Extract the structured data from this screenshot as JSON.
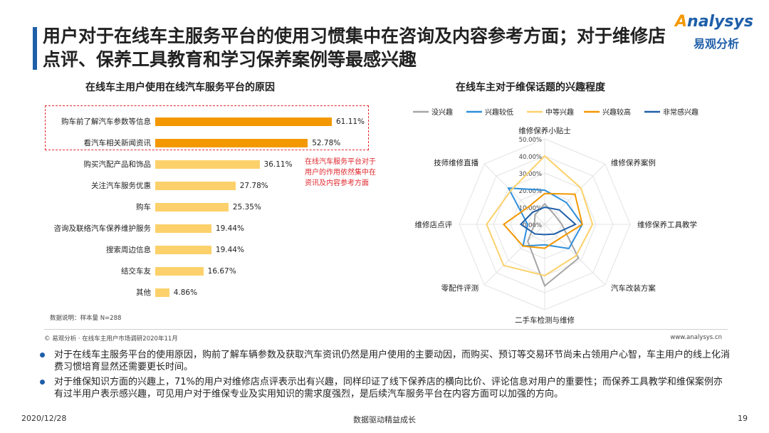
{
  "header": {
    "title": "用户对于在线车主服务平台的使用习惯集中在咨询及内容参考方面；对于维修店点评、保养工具教育和学习保养案例等最感兴趣"
  },
  "logo": {
    "brand_a": "A",
    "brand_rest": "nalysys",
    "brand_cn": "易观分析"
  },
  "bar_chart_title": "在线车主用户使用在线汽车服务平台的原因",
  "radar_chart_title": "在线车主对于维保话题的兴趣程度",
  "annotation": "在线汽车服务平台对于用户的作用依然集中在资讯及内容参考方面",
  "data_note": "数据说明：样本量 N=288",
  "source": "© 易观分析 · 在线车主用户市场调研2020年11月",
  "site": "www.analysys.cn",
  "bullets": [
    "对于在线车主服务平台的使用原因，购前了解车辆参数及获取汽车资讯仍然是用户使用的主要动因，而购买、预订等交易环节尚未占领用户心智，车主用户的线上化消费习惯培育显然还需要更长时间。",
    "对于维保知识方面的兴趣上，71%的用户对维修店点评表示出有兴趣，同样印证了线下保养店的横向比价、评论信息对用户的重要性；而保养工具教学和维保案例亦有过半用户表示感兴趣，可见用户对于维保专业及实用知识的需求度强烈，是后续汽车服务平台在内容方面可以加强的方向。"
  ],
  "footer": {
    "date": "2020/12/28",
    "slogan": "数据驱动精益成长",
    "page": "19"
  },
  "colors": {
    "accent_blue": "#1f5fa9",
    "bar_top": "#f39800",
    "bar_rest": "#fcd16b",
    "highlight_red": "#e0282e"
  },
  "chart_data": [
    {
      "type": "bar",
      "orientation": "horizontal",
      "title": "在线车主用户使用在线汽车服务平台的原因",
      "categories": [
        "购车前了解汽车参数等信息",
        "看汽车相关新闻资讯",
        "购买汽配产品和饰品",
        "关注汽车服务优惠",
        "购车",
        "咨询及联络汽车保养维护服务",
        "搜索周边信息",
        "结交车友",
        "其他"
      ],
      "values": [
        61.11,
        52.78,
        36.11,
        27.78,
        25.35,
        19.44,
        19.44,
        16.67,
        4.86
      ],
      "value_labels": [
        "61.11%",
        "52.78%",
        "36.11%",
        "27.78%",
        "25.35%",
        "19.44%",
        "19.44%",
        "16.67%",
        "4.86%"
      ],
      "unit": "%"
    },
    {
      "type": "radar",
      "title": "在线车主对于维保话题的兴趣程度",
      "axes": [
        "维修保养小贴士",
        "维修保养案例",
        "维修保养工具教学",
        "汽车改装方案",
        "二手车检测与维修",
        "零配件评测",
        "维修店点评",
        "技师维修直播"
      ],
      "rlim": [
        0,
        50
      ],
      "ticks": [
        "0.00%",
        "10.00%",
        "20.00%",
        "30.00%",
        "40.00%",
        "50.00%"
      ],
      "legend_position": "top",
      "series": [
        {
          "name": "没兴趣",
          "color": "#a6a6a6",
          "values": [
            12,
            8,
            10,
            28,
            36,
            14,
            6,
            8
          ]
        },
        {
          "name": "兴趣较低",
          "color": "#2e8fdc",
          "values": [
            20,
            18,
            22,
            20,
            12,
            18,
            10,
            30
          ]
        },
        {
          "name": "中等兴趣",
          "color": "#fcd16b",
          "values": [
            40,
            30,
            28,
            26,
            30,
            34,
            34,
            28
          ]
        },
        {
          "name": "兴趣较高",
          "color": "#f39800",
          "values": [
            18,
            25,
            22,
            12,
            14,
            18,
            24,
            14
          ]
        },
        {
          "name": "非常感兴趣",
          "color": "#1f5fa9",
          "values": [
            10,
            12,
            18,
            8,
            6,
            8,
            14,
            10
          ]
        }
      ]
    }
  ]
}
